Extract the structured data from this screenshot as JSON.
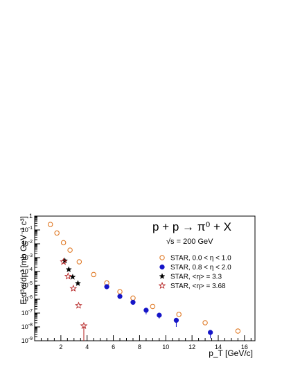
{
  "chart_data": {
    "type": "scatter",
    "reaction_text": "p + p → π⁰ + X",
    "energy_text": "√s = 200 GeV",
    "xlabel": "p_T [GeV/c]",
    "ylabel": "E d³σ/dp³ [mb GeV⁻² c³]",
    "xlim": [
      0,
      16.8
    ],
    "ylim_log10": [
      -9,
      0
    ],
    "log_y": true,
    "x_ticks": [
      2,
      4,
      6,
      8,
      10,
      12,
      14,
      16
    ],
    "y_tick_exponents": [
      0,
      -1,
      -2,
      -3,
      -4,
      -5,
      -6,
      -7,
      -8,
      -9
    ],
    "legend_position": "right",
    "series": [
      {
        "name": "STAR, 0.0 < η < 1.0",
        "marker": "open-circle",
        "color": "#e07b28",
        "x": [
          1.2,
          1.7,
          2.2,
          2.7,
          3.4,
          4.5,
          5.5,
          6.5,
          7.5,
          9.0,
          11.0,
          13.0,
          15.5
        ],
        "y": [
          0.25,
          0.06,
          0.012,
          0.0035,
          0.0005,
          6e-05,
          1.5e-05,
          3.5e-06,
          1.2e-06,
          3e-07,
          8e-08,
          2e-08,
          5e-09
        ],
        "yerr_low": [
          0,
          0,
          0,
          0,
          0,
          0,
          0,
          0,
          0,
          0,
          0,
          0,
          0
        ],
        "yerr_high": [
          0,
          0,
          0,
          0,
          0,
          0,
          0,
          0,
          0,
          0,
          0,
          0,
          0
        ]
      },
      {
        "name": "STAR, 0.8 < η < 2.0",
        "marker": "filled-circle",
        "color": "#1515c8",
        "x": [
          5.5,
          6.5,
          7.5,
          8.5,
          9.5,
          10.8,
          13.4
        ],
        "y": [
          8e-06,
          1.6e-06,
          6e-07,
          1.6e-07,
          7e-08,
          3e-08,
          4e-09
        ],
        "yerr_low": [
          0,
          0,
          0,
          8e-08,
          3e-08,
          2e-08,
          2.5e-09
        ],
        "yerr_high": [
          0,
          0,
          0,
          0,
          0,
          0,
          0
        ]
      },
      {
        "name": "STAR, <η> = 3.3",
        "marker": "filled-star",
        "color": "#000000",
        "x": [
          2.3,
          2.6,
          2.9,
          3.3
        ],
        "y": [
          0.0006,
          0.00014,
          4e-05,
          1.4e-05
        ],
        "yerr_low": [
          0,
          0,
          0,
          0
        ],
        "yerr_high": [
          0,
          0,
          0,
          0
        ]
      },
      {
        "name": "STAR, <η> = 3.68",
        "marker": "open-star",
        "color": "#b42020",
        "x": [
          2.2,
          2.55,
          2.95,
          3.35,
          3.75
        ],
        "y": [
          0.0005,
          4.5e-05,
          6e-06,
          3.5e-07,
          1.2e-08
        ],
        "yerr_low": [
          0,
          0,
          0,
          0,
          1.1e-08
        ],
        "yerr_high": [
          0,
          0,
          0,
          0,
          0
        ]
      }
    ]
  }
}
